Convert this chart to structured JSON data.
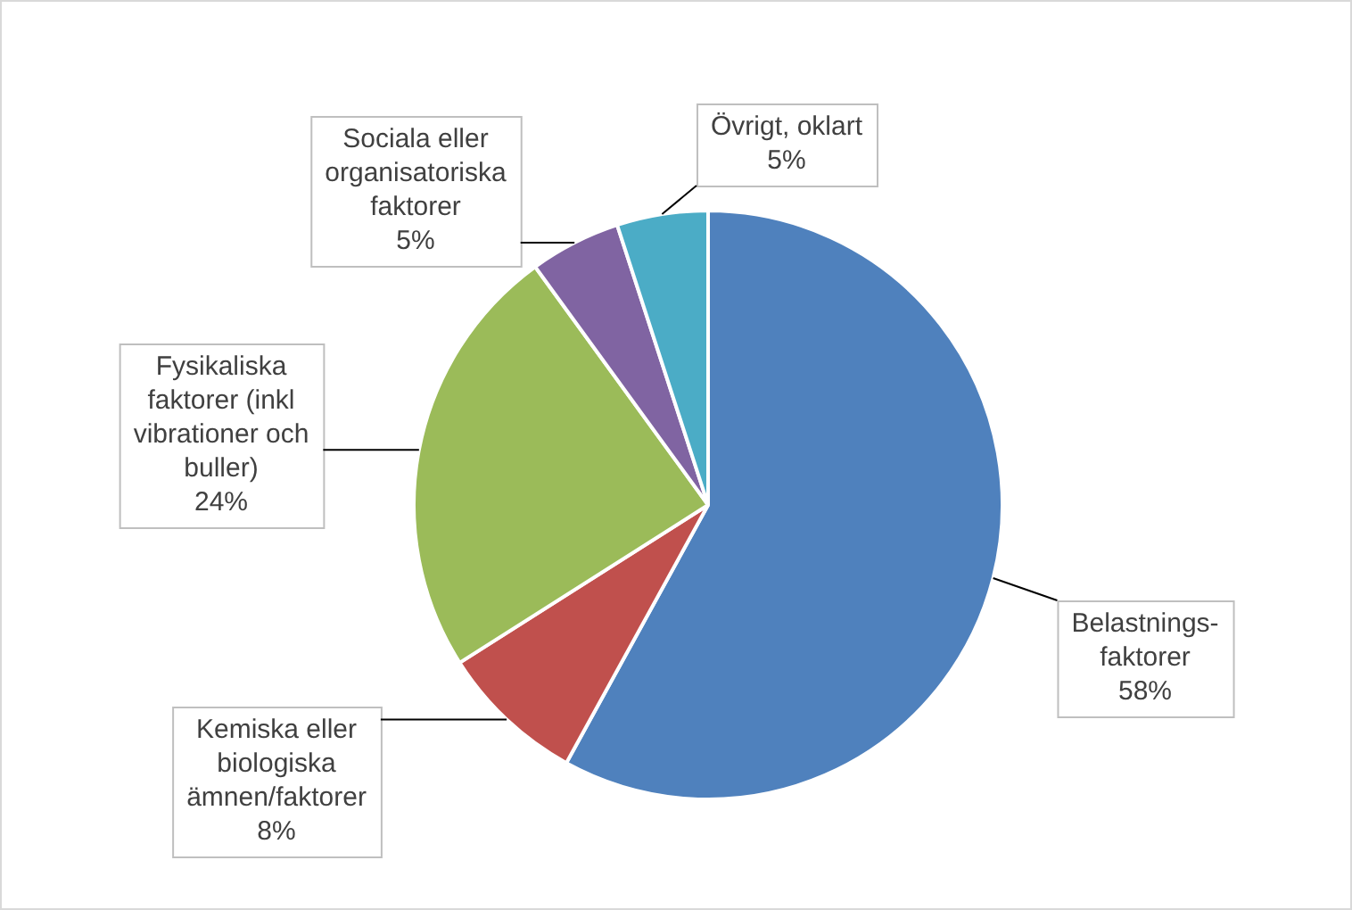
{
  "chart_data": {
    "type": "pie",
    "categories": [
      "Belastnings-\nfaktorer",
      "Kemiska eller\nbiologiska\nämnen/faktorer",
      "Fysikaliska\nfaktorer (inkl\nvibrationer och\nbuller)",
      "Sociala eller\norganisatoriska\nfaktorer",
      "Övrigt, oklart"
    ],
    "values": [
      58,
      8,
      24,
      5,
      5
    ],
    "colors": [
      "#4f81bd",
      "#c0504d",
      "#9bbb59",
      "#8064a2",
      "#4bacc6"
    ],
    "value_labels": [
      "58%",
      "8%",
      "24%",
      "5%",
      "5%"
    ],
    "legend": false
  }
}
